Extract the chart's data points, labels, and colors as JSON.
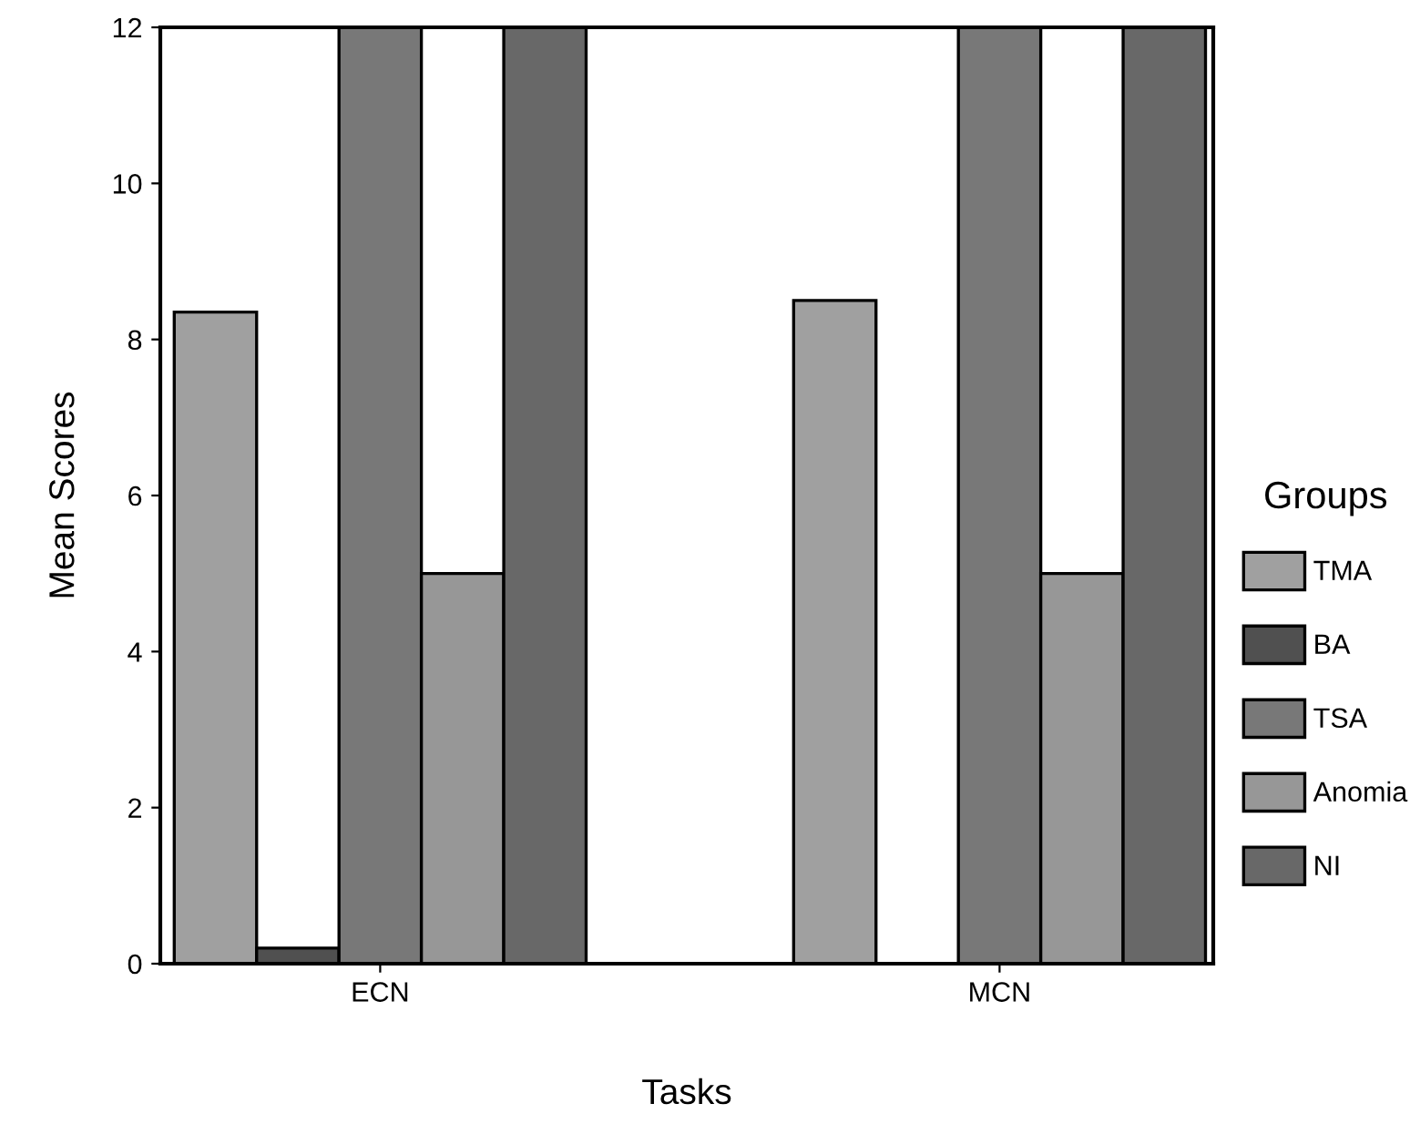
{
  "chart_data": {
    "type": "bar",
    "xlabel": "Tasks",
    "ylabel": "Mean Scores",
    "legend_title": "Groups",
    "categories": [
      "ECN",
      "MCN"
    ],
    "series": [
      {
        "name": "TMA",
        "color": "#a0a0a0",
        "values": [
          8.35,
          8.5
        ]
      },
      {
        "name": "BA",
        "color": "#505050",
        "values": [
          0.2,
          null
        ]
      },
      {
        "name": "TSA",
        "color": "#787878",
        "values": [
          12,
          12
        ]
      },
      {
        "name": "Anomia",
        "color": "#979797",
        "values": [
          5,
          5
        ]
      },
      {
        "name": "NI",
        "color": "#686868",
        "values": [
          12,
          12
        ]
      }
    ],
    "ylim": [
      0,
      12
    ],
    "yticks": [
      0,
      2,
      4,
      6,
      8,
      10,
      12
    ],
    "grid": false,
    "legend": "right"
  }
}
